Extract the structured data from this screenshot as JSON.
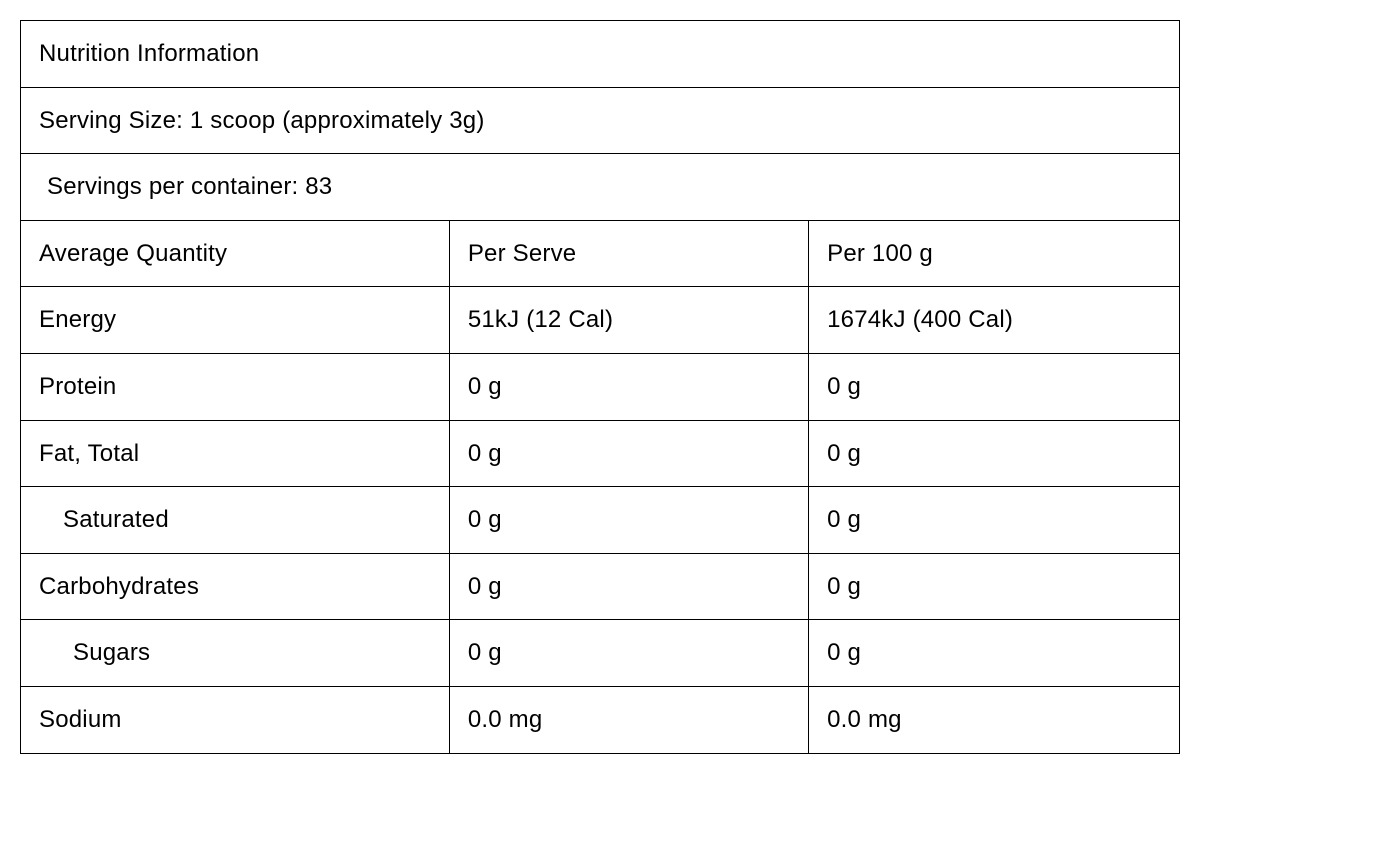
{
  "table": {
    "title": "Nutrition Information",
    "serving_size": "Serving Size: 1 scoop (approximately 3g)",
    "servings_per_container": "Servings per container: 83",
    "border_color": "#000000",
    "background_color": "#ffffff",
    "text_color": "#000000",
    "title_fontsize": 24,
    "body_fontsize": 24,
    "header": {
      "qty": "Average Quantity",
      "per_serve": "Per Serve",
      "per_100g": "Per 100 g"
    },
    "rows": [
      {
        "label": "Energy",
        "indent": 0,
        "per_serve": "51kJ (12 Cal)",
        "per_100g": "1674kJ (400 Cal)"
      },
      {
        "label": "Protein",
        "indent": 0,
        "per_serve": "0 g",
        "per_100g": "0 g"
      },
      {
        "label": "Fat, Total",
        "indent": 0,
        "per_serve": "0 g",
        "per_100g": "0 g"
      },
      {
        "label": "Saturated",
        "indent": 1,
        "per_serve": "0 g",
        "per_100g": "0 g"
      },
      {
        "label": "Carbohydrates",
        "indent": 0,
        "per_serve": "0 g",
        "per_100g": "0 g"
      },
      {
        "label": "Sugars",
        "indent": 2,
        "per_serve": "0 g",
        "per_100g": "0 g"
      },
      {
        "label": "Sodium",
        "indent": 0,
        "per_serve": "0.0 mg",
        "per_100g": "0.0 mg"
      }
    ],
    "column_widths_pct": [
      37,
      31,
      32
    ]
  }
}
